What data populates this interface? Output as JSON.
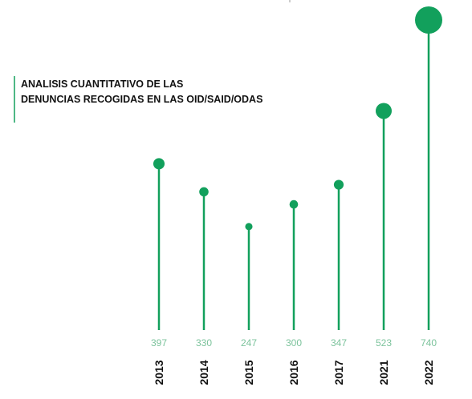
{
  "chart_data": {
    "type": "lollipop",
    "title": [
      "ANALISIS CUANTITATIVO DE LAS",
      "DENUNCIAS RECOGIDAS EN LAS OID/SAID/ODAS"
    ],
    "categories": [
      "2013",
      "2014",
      "2015",
      "2016",
      "2017",
      "2021",
      "2022"
    ],
    "values": [
      397,
      330,
      247,
      300,
      347,
      523,
      740
    ],
    "color": "#12a05c"
  }
}
